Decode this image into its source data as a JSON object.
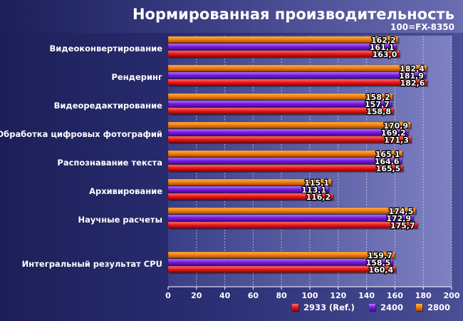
{
  "chart_data": {
    "type": "bar",
    "orientation": "horizontal",
    "title": "Нормированная производительность",
    "subtitle": "100=FX-8350",
    "categories": [
      "Видеоконвертирование",
      "Рендеринг",
      "Видеоредактирование",
      "Обработка цифровых фотографий",
      "Распознавание текста",
      "Архивирование",
      "Научные расчеты",
      "Интегральный результат CPU"
    ],
    "series": [
      {
        "name": "2800",
        "color": "#f07c10",
        "values": [
          162.2,
          182.4,
          158.2,
          170.9,
          165.1,
          115.1,
          174.5,
          159.7
        ],
        "labels": [
          "162,2",
          "182,4",
          "158,2",
          "170,9",
          "165,1",
          "115,1",
          "174,5",
          "159,7"
        ]
      },
      {
        "name": "2400",
        "color": "#7a18e0",
        "values": [
          161.1,
          181.9,
          157.7,
          169.2,
          164.6,
          113.1,
          172.9,
          158.5
        ],
        "labels": [
          "161,1",
          "181,9",
          "157,7",
          "169,2",
          "164,6",
          "113,1",
          "172,9",
          "158,5"
        ]
      },
      {
        "name": "2933 (Ref.)",
        "color": "#e81818",
        "values": [
          163.0,
          182.6,
          158.8,
          171.3,
          165.5,
          116.2,
          175.7,
          160.4
        ],
        "labels": [
          "163,0",
          "182,6",
          "158,8",
          "171,3",
          "165,5",
          "116,2",
          "175,7",
          "160,4"
        ]
      }
    ],
    "legend_order": [
      "2933 (Ref.)",
      "2400",
      "2800"
    ],
    "xlim": [
      0,
      200
    ],
    "xticks": [
      0,
      20,
      40,
      60,
      80,
      100,
      120,
      140,
      160,
      180,
      200
    ],
    "grid": true,
    "legend_position": "bottom-right"
  }
}
